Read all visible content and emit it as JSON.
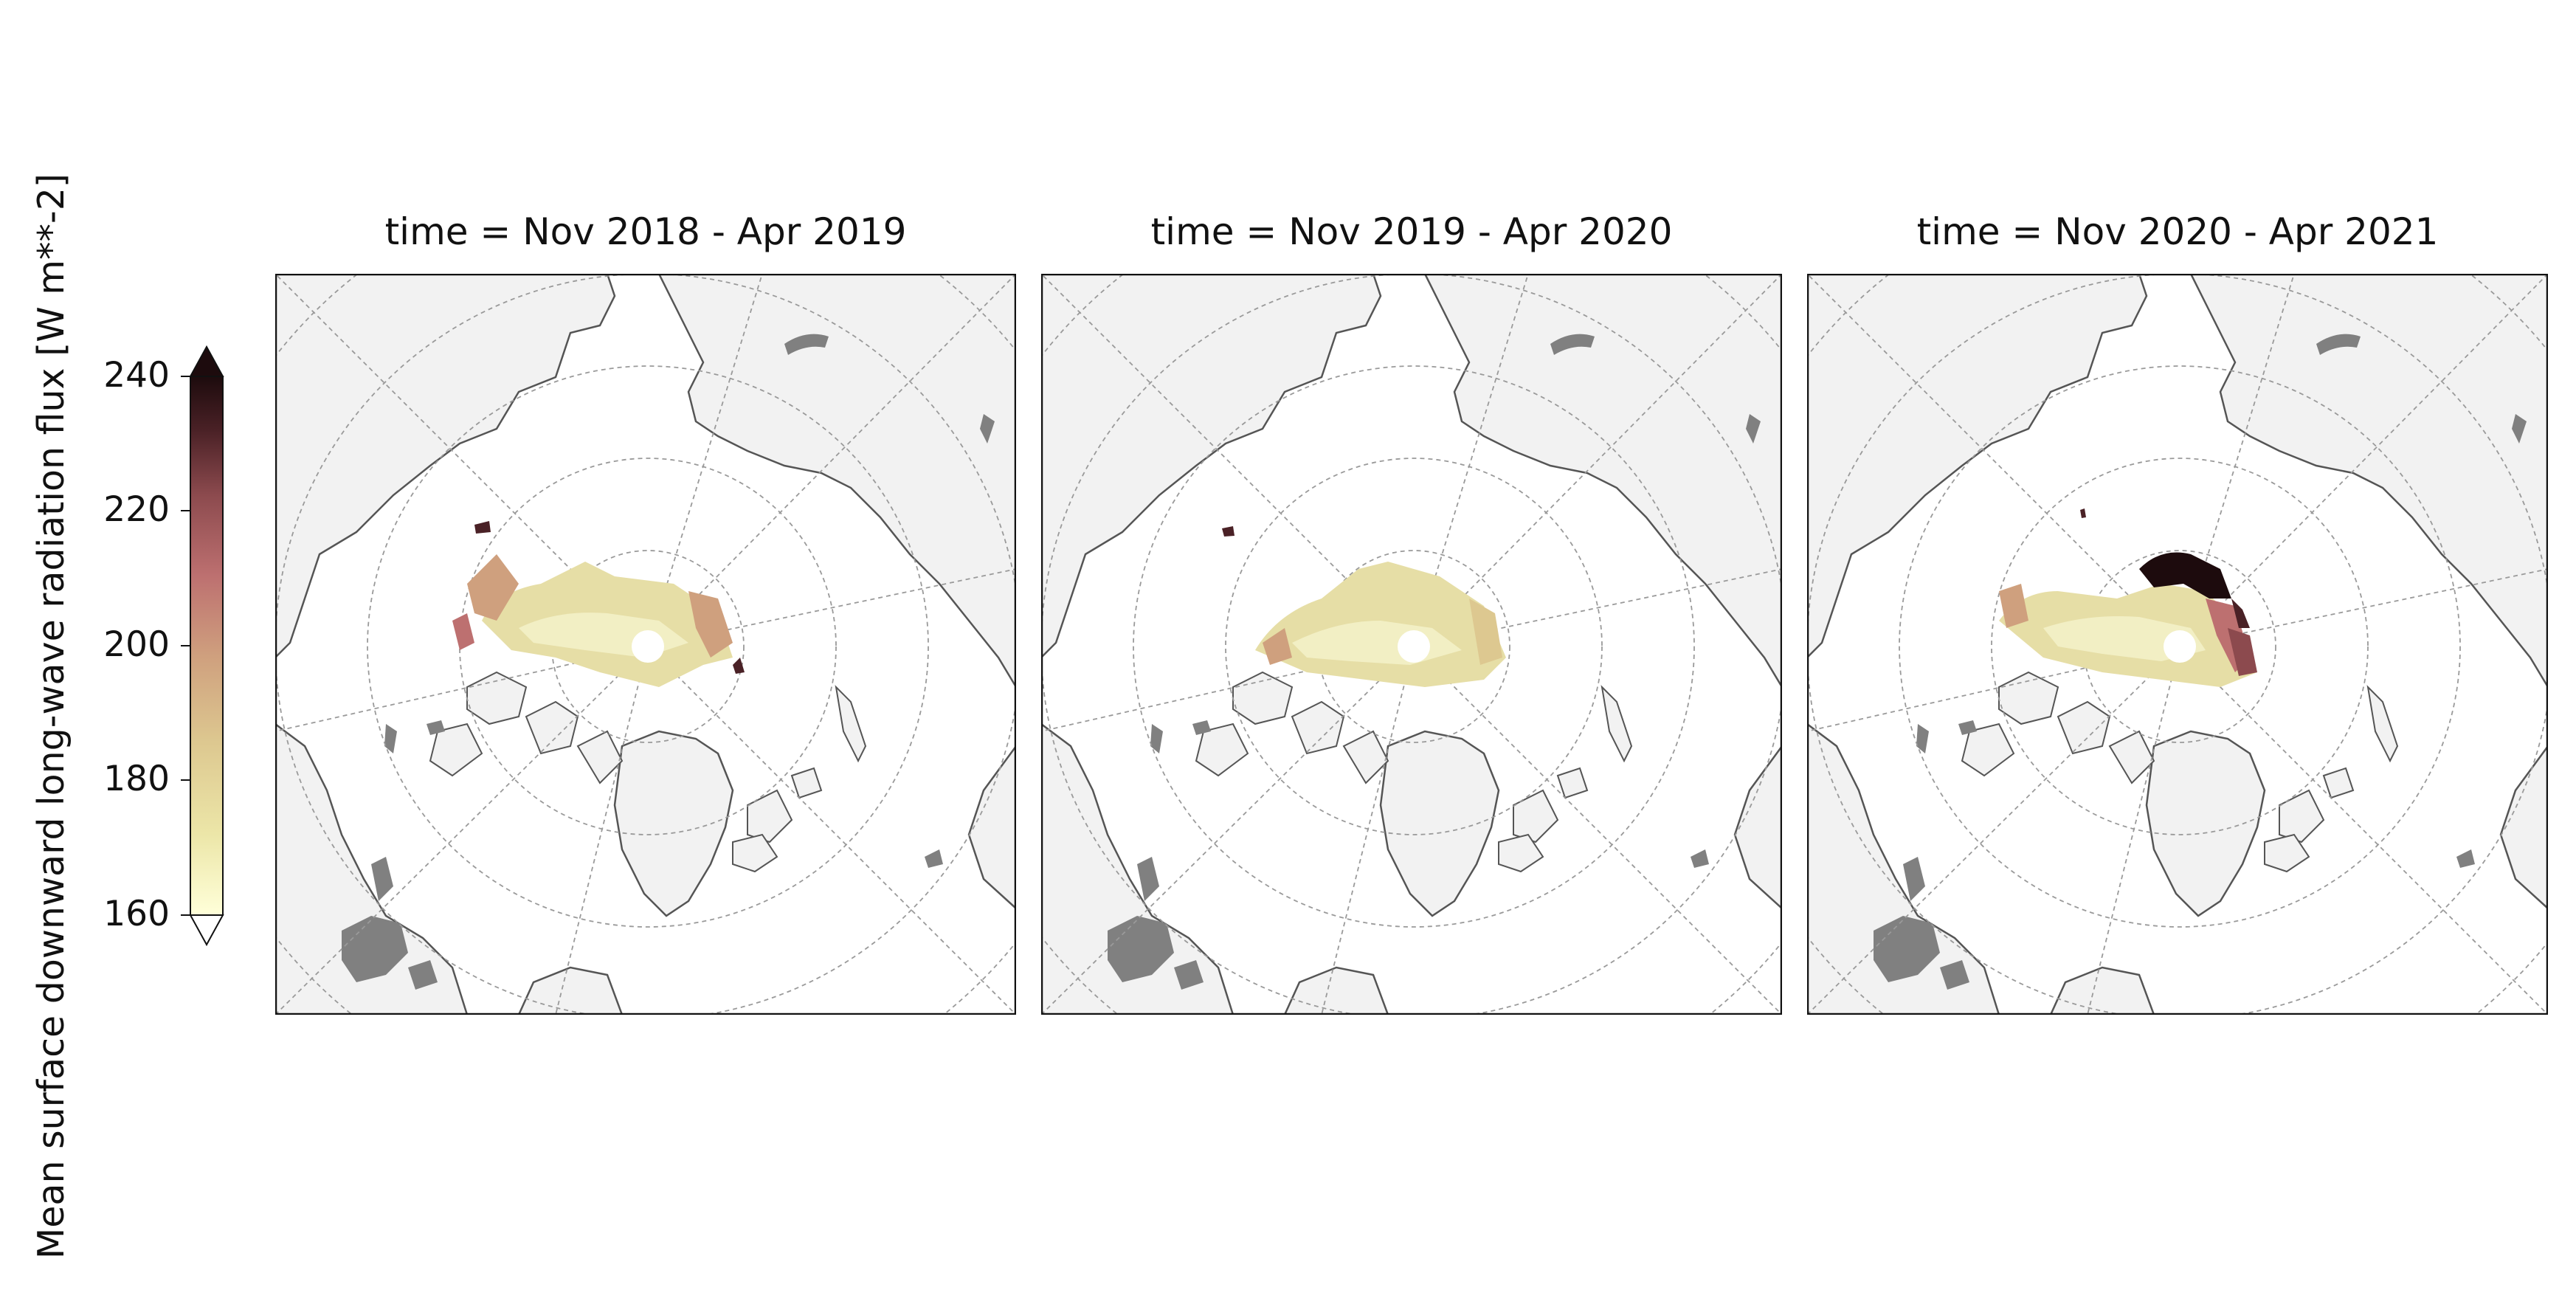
{
  "colorbar": {
    "label": "Mean surface downward long-wave radiation flux [W m**-2]",
    "ticks": [
      "160",
      "180",
      "200",
      "220",
      "240"
    ],
    "range": [
      160,
      240
    ],
    "extend": "both",
    "colors": [
      "#ffffd9",
      "#ece6a8",
      "#ddc890",
      "#cfa07e",
      "#bd7070",
      "#8c4a4e",
      "#4a2126",
      "#1d0b0d"
    ]
  },
  "map_colors": {
    "ocean": "#ffffff",
    "land_fill": "#f2f2f2",
    "coast": "#555555",
    "lakes": "#808080",
    "gridlines": "#9a9a9a"
  },
  "panels": [
    {
      "title": "time = Nov 2018 - Apr 2019",
      "field": "p1"
    },
    {
      "title": "time = Nov 2019 - Apr 2020",
      "field": "p2"
    },
    {
      "title": "time = Nov 2020 - Apr 2021",
      "field": "p3"
    }
  ]
}
